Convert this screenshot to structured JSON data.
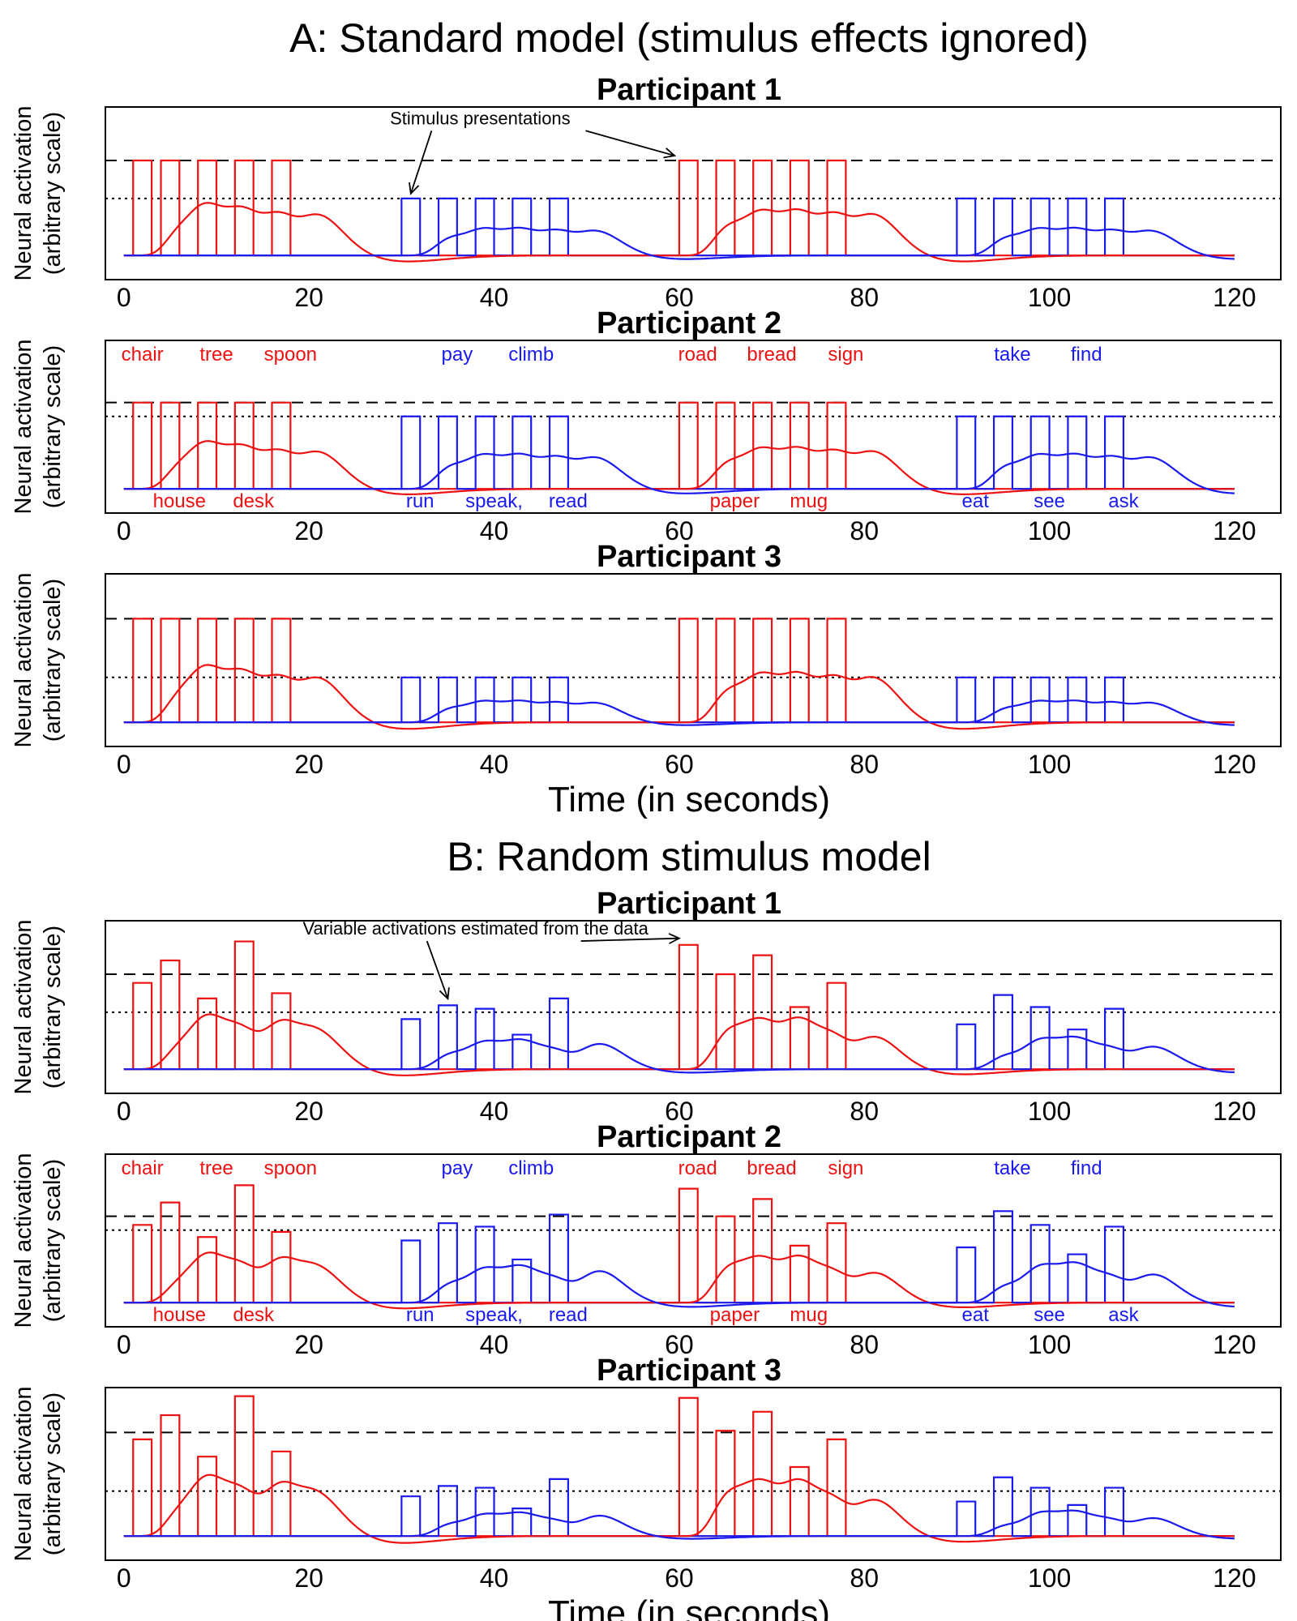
{
  "sections": [
    {
      "title": "A: Standard model (stimulus effects ignored)"
    },
    {
      "title": "B: Random stimulus model"
    }
  ],
  "colors": {
    "red": "#ee1111",
    "blue": "#1a1aee",
    "axis": "#000000"
  },
  "chart_data": [
    {
      "type": "line",
      "section": "A",
      "title": "Participant 1",
      "xlabel": "",
      "ylabel": "Neural activation (arbitrary scale)",
      "x_ticks": [
        0,
        20,
        40,
        60,
        80,
        100,
        120
      ],
      "xlim": [
        -2,
        125
      ],
      "ylim": [
        0,
        1
      ],
      "red_stimuli": {
        "onsets": [
          1,
          4,
          8,
          12,
          16,
          60,
          64,
          68,
          72,
          76
        ],
        "heights": [
          0.55,
          0.55,
          0.55,
          0.55,
          0.55,
          0.55,
          0.55,
          0.55,
          0.55,
          0.55
        ]
      },
      "blue_stimuli": {
        "onsets": [
          30,
          34,
          38,
          42,
          46,
          90,
          94,
          98,
          102,
          106
        ],
        "heights": [
          0.33,
          0.33,
          0.33,
          0.33,
          0.33,
          0.33,
          0.33,
          0.33,
          0.33,
          0.33
        ]
      },
      "dashed_level": 0.55,
      "dotted_level": 0.33,
      "annotation": {
        "text": "Stimulus presentations",
        "x": 38.5,
        "y": 0.9,
        "targets": [
          [
            31,
            0.33
          ],
          [
            59.5,
            0.55
          ]
        ]
      },
      "top_labels": [],
      "bottom_labels": []
    },
    {
      "type": "line",
      "section": "A",
      "title": "Participant 2",
      "xlabel": "",
      "ylabel": "Neural activation (arbitrary scale)",
      "x_ticks": [
        0,
        20,
        40,
        60,
        80,
        100,
        120
      ],
      "xlim": [
        -2,
        125
      ],
      "ylim": [
        0,
        1
      ],
      "red_stimuli": {
        "onsets": [
          1,
          4,
          8,
          12,
          16,
          60,
          64,
          68,
          72,
          76
        ],
        "heights": [
          0.5,
          0.5,
          0.5,
          0.5,
          0.5,
          0.5,
          0.5,
          0.5,
          0.5,
          0.5
        ]
      },
      "blue_stimuli": {
        "onsets": [
          30,
          34,
          38,
          42,
          46,
          90,
          94,
          98,
          102,
          106
        ],
        "heights": [
          0.42,
          0.42,
          0.42,
          0.42,
          0.42,
          0.42,
          0.42,
          0.42,
          0.42,
          0.42
        ]
      },
      "dashed_level": 0.5,
      "dotted_level": 0.42,
      "top_labels": [
        {
          "text": "chair",
          "x": 1,
          "color": "red"
        },
        {
          "text": "tree",
          "x": 9,
          "color": "red"
        },
        {
          "text": "spoon",
          "x": 17,
          "color": "red"
        },
        {
          "text": "pay",
          "x": 35,
          "color": "blue"
        },
        {
          "text": "climb",
          "x": 43,
          "color": "blue"
        },
        {
          "text": "road",
          "x": 61,
          "color": "red"
        },
        {
          "text": "bread",
          "x": 69,
          "color": "red"
        },
        {
          "text": "sign",
          "x": 77,
          "color": "red"
        },
        {
          "text": "take",
          "x": 95,
          "color": "blue"
        },
        {
          "text": "find",
          "x": 103,
          "color": "blue"
        }
      ],
      "bottom_labels": [
        {
          "text": "house",
          "x": 5,
          "color": "red"
        },
        {
          "text": "desk",
          "x": 13,
          "color": "red"
        },
        {
          "text": "run",
          "x": 31,
          "color": "blue"
        },
        {
          "text": "speak,",
          "x": 39,
          "color": "blue"
        },
        {
          "text": "read",
          "x": 47,
          "color": "blue"
        },
        {
          "text": "paper",
          "x": 65,
          "color": "red"
        },
        {
          "text": "mug",
          "x": 73,
          "color": "red"
        },
        {
          "text": "eat",
          "x": 91,
          "color": "blue"
        },
        {
          "text": "see",
          "x": 99,
          "color": "blue"
        },
        {
          "text": "ask",
          "x": 107,
          "color": "blue"
        }
      ]
    },
    {
      "type": "line",
      "section": "A",
      "title": "Participant 3",
      "xlabel": "Time (in seconds)",
      "ylabel": "Neural activation (arbitrary scale)",
      "x_ticks": [
        0,
        20,
        40,
        60,
        80,
        100,
        120
      ],
      "xlim": [
        -2,
        125
      ],
      "ylim": [
        0,
        1
      ],
      "red_stimuli": {
        "onsets": [
          1,
          4,
          8,
          12,
          16,
          60,
          64,
          68,
          72,
          76
        ],
        "heights": [
          0.6,
          0.6,
          0.6,
          0.6,
          0.6,
          0.6,
          0.6,
          0.6,
          0.6,
          0.6
        ]
      },
      "blue_stimuli": {
        "onsets": [
          30,
          34,
          38,
          42,
          46,
          90,
          94,
          98,
          102,
          106
        ],
        "heights": [
          0.26,
          0.26,
          0.26,
          0.26,
          0.26,
          0.26,
          0.26,
          0.26,
          0.26,
          0.26
        ]
      },
      "dashed_level": 0.6,
      "dotted_level": 0.26,
      "top_labels": [],
      "bottom_labels": []
    },
    {
      "type": "line",
      "section": "B",
      "title": "Participant 1",
      "xlabel": "",
      "ylabel": "Neural activation (arbitrary scale)",
      "x_ticks": [
        0,
        20,
        40,
        60,
        80,
        100,
        120
      ],
      "xlim": [
        -2,
        125
      ],
      "ylim": [
        0,
        1
      ],
      "red_stimuli": {
        "onsets": [
          1,
          4,
          8,
          12,
          16,
          60,
          64,
          68,
          72,
          76
        ],
        "heights": [
          0.5,
          0.63,
          0.41,
          0.74,
          0.44,
          0.72,
          0.55,
          0.66,
          0.36,
          0.5
        ]
      },
      "blue_stimuli": {
        "onsets": [
          30,
          34,
          38,
          42,
          46,
          90,
          94,
          98,
          102,
          106
        ],
        "heights": [
          0.29,
          0.37,
          0.35,
          0.2,
          0.41,
          0.26,
          0.43,
          0.36,
          0.23,
          0.35
        ]
      },
      "dashed_level": 0.55,
      "dotted_level": 0.33,
      "annotation": {
        "text": "Variable activations estimated from the data",
        "x": 38,
        "y": 0.92,
        "targets": [
          [
            35,
            0.38
          ],
          [
            60,
            0.73
          ]
        ]
      },
      "top_labels": [],
      "bottom_labels": []
    },
    {
      "type": "line",
      "section": "B",
      "title": "Participant 2",
      "xlabel": "",
      "ylabel": "Neural activation (arbitrary scale)",
      "x_ticks": [
        0,
        20,
        40,
        60,
        80,
        100,
        120
      ],
      "xlim": [
        -2,
        125
      ],
      "ylim": [
        0,
        1
      ],
      "red_stimuli": {
        "onsets": [
          1,
          4,
          8,
          12,
          16,
          60,
          64,
          68,
          72,
          76
        ],
        "heights": [
          0.45,
          0.58,
          0.38,
          0.68,
          0.41,
          0.66,
          0.5,
          0.6,
          0.33,
          0.46
        ]
      },
      "blue_stimuli": {
        "onsets": [
          30,
          34,
          38,
          42,
          46,
          90,
          94,
          98,
          102,
          106
        ],
        "heights": [
          0.36,
          0.46,
          0.44,
          0.25,
          0.51,
          0.32,
          0.53,
          0.45,
          0.28,
          0.44
        ]
      },
      "dashed_level": 0.5,
      "dotted_level": 0.42,
      "top_labels": [
        {
          "text": "chair",
          "x": 1,
          "color": "red"
        },
        {
          "text": "tree",
          "x": 9,
          "color": "red"
        },
        {
          "text": "spoon",
          "x": 17,
          "color": "red"
        },
        {
          "text": "pay",
          "x": 35,
          "color": "blue"
        },
        {
          "text": "climb",
          "x": 43,
          "color": "blue"
        },
        {
          "text": "road",
          "x": 61,
          "color": "red"
        },
        {
          "text": "bread",
          "x": 69,
          "color": "red"
        },
        {
          "text": "sign",
          "x": 77,
          "color": "red"
        },
        {
          "text": "take",
          "x": 95,
          "color": "blue"
        },
        {
          "text": "find",
          "x": 103,
          "color": "blue"
        }
      ],
      "bottom_labels": [
        {
          "text": "house",
          "x": 5,
          "color": "red"
        },
        {
          "text": "desk",
          "x": 13,
          "color": "red"
        },
        {
          "text": "run",
          "x": 31,
          "color": "blue"
        },
        {
          "text": "speak,",
          "x": 39,
          "color": "blue"
        },
        {
          "text": "read",
          "x": 47,
          "color": "blue"
        },
        {
          "text": "paper",
          "x": 65,
          "color": "red"
        },
        {
          "text": "mug",
          "x": 73,
          "color": "red"
        },
        {
          "text": "eat",
          "x": 91,
          "color": "blue"
        },
        {
          "text": "see",
          "x": 99,
          "color": "blue"
        },
        {
          "text": "ask",
          "x": 107,
          "color": "blue"
        }
      ]
    },
    {
      "type": "line",
      "section": "B",
      "title": "Participant 3",
      "xlabel": "Time (in seconds)",
      "ylabel": "Neural activation (arbitrary scale)",
      "x_ticks": [
        0,
        20,
        40,
        60,
        80,
        100,
        120
      ],
      "xlim": [
        -2,
        125
      ],
      "ylim": [
        0,
        1
      ],
      "red_stimuli": {
        "onsets": [
          1,
          4,
          8,
          12,
          16,
          60,
          64,
          68,
          72,
          76
        ],
        "heights": [
          0.56,
          0.7,
          0.46,
          0.81,
          0.49,
          0.8,
          0.61,
          0.72,
          0.4,
          0.56
        ]
      },
      "blue_stimuli": {
        "onsets": [
          30,
          34,
          38,
          42,
          46,
          90,
          94,
          98,
          102,
          106
        ],
        "heights": [
          0.23,
          0.29,
          0.28,
          0.16,
          0.33,
          0.2,
          0.34,
          0.28,
          0.18,
          0.28
        ]
      },
      "dashed_level": 0.6,
      "dotted_level": 0.26,
      "top_labels": [],
      "bottom_labels": []
    }
  ]
}
